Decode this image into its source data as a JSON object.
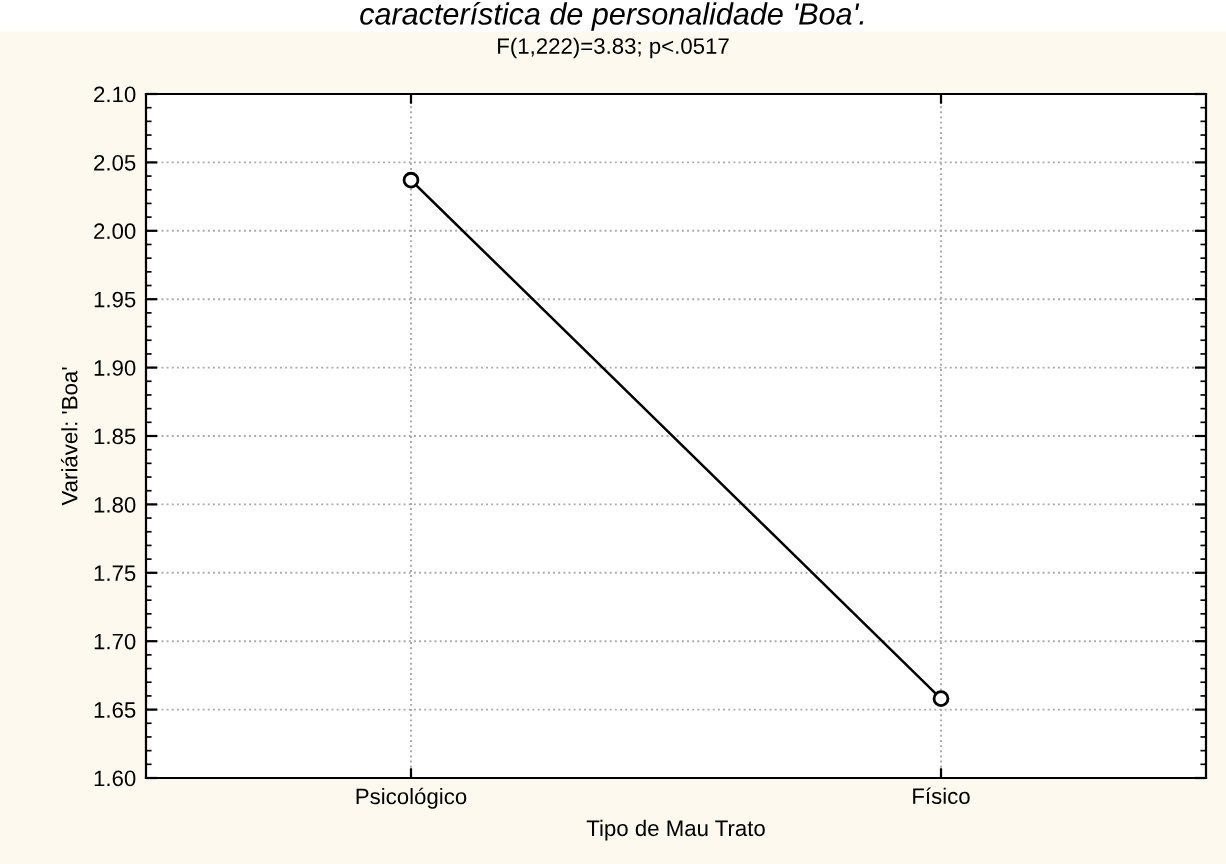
{
  "chart_data": {
    "type": "line",
    "title": "característica de personalidade 'Boa'.",
    "subtitle": "F(1,222)=3.83; p<.0517",
    "xlabel": "Tipo de Mau Trato",
    "ylabel": "Variável: 'Boa'",
    "categories": [
      "Psicológico",
      "Físico"
    ],
    "series": [
      {
        "color": "#000000",
        "values": [
          2.037,
          1.658
        ]
      }
    ],
    "ylim": [
      1.6,
      2.1
    ],
    "yticks": [
      {
        "value": 1.6,
        "label": "1.60"
      },
      {
        "value": 1.65,
        "label": "1.65"
      },
      {
        "value": 1.7,
        "label": "1.70"
      },
      {
        "value": 1.75,
        "label": "1.75"
      },
      {
        "value": 1.8,
        "label": "1.80"
      },
      {
        "value": 1.85,
        "label": "1.85"
      },
      {
        "value": 1.9,
        "label": "1.90"
      },
      {
        "value": 1.95,
        "label": "1.95"
      },
      {
        "value": 2.0,
        "label": "2.00"
      },
      {
        "value": 2.05,
        "label": "2.05"
      },
      {
        "value": 2.1,
        "label": "2.10"
      }
    ],
    "grid": true,
    "marker": "circle",
    "line_style": "solid",
    "legend": false
  }
}
